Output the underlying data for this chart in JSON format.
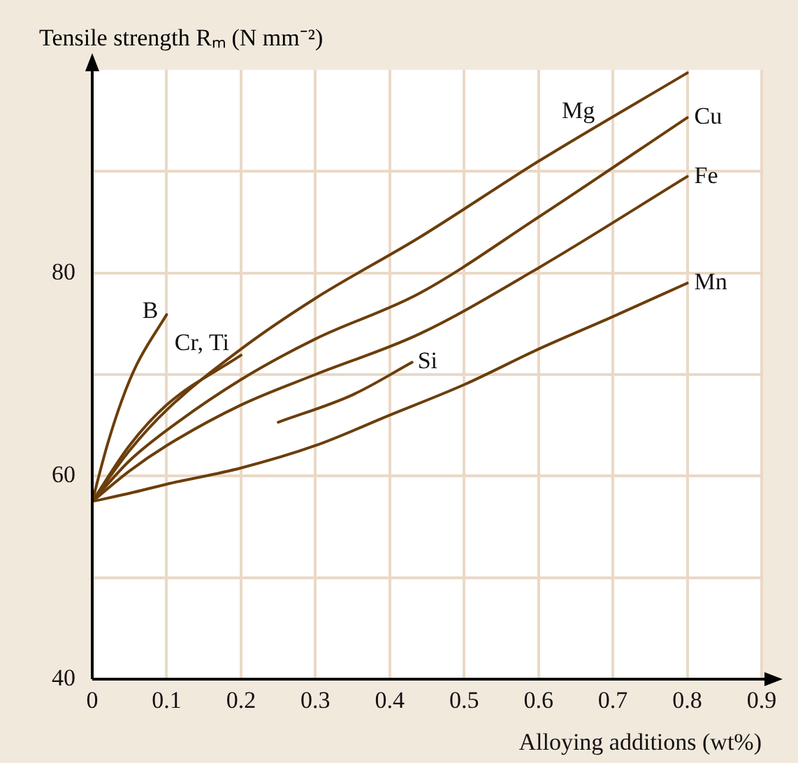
{
  "chart_data": {
    "type": "line",
    "ylabel": "Tensile strength Rₘ (N mm⁻²)",
    "xlabel": "Alloying additions (wt%)",
    "xlim": [
      0,
      0.9
    ],
    "xticks": [
      0,
      0.1,
      0.2,
      0.3,
      0.4,
      0.5,
      0.6,
      0.7,
      0.8,
      0.9
    ],
    "ylim": [
      40,
      100
    ],
    "yticks": [
      40,
      {
        "value": 50,
        "label": null
      },
      60,
      {
        "value": 70,
        "label": null
      },
      80,
      {
        "value": 90,
        "label": null
      }
    ],
    "grid": true,
    "legend": false,
    "marker": "none",
    "line_style": "solid",
    "series": [
      {
        "name": "B",
        "color": "#6b3e0a",
        "x": [
          0,
          0.02,
          0.04,
          0.06,
          0.1
        ],
        "values": [
          57.5,
          63,
          67.5,
          71,
          75.9
        ]
      },
      {
        "name": "Cr, Ti",
        "color": "#6b3e0a",
        "x": [
          0,
          0.05,
          0.1,
          0.2
        ],
        "values": [
          57.5,
          63,
          67,
          71.9
        ]
      },
      {
        "name": "Mg",
        "color": "#6b3e0a",
        "x": [
          0,
          0.05,
          0.1,
          0.2,
          0.3,
          0.44,
          0.6,
          0.8
        ],
        "values": [
          57.5,
          62.5,
          66.5,
          72.5,
          77.5,
          83.5,
          91,
          99.7
        ]
      },
      {
        "name": "Cu",
        "color": "#6b3e0a",
        "x": [
          0,
          0.05,
          0.1,
          0.2,
          0.3,
          0.44,
          0.6,
          0.8
        ],
        "values": [
          57.5,
          61.5,
          64.5,
          69.5,
          73.5,
          78,
          85.5,
          95.3
        ]
      },
      {
        "name": "Fe",
        "color": "#6b3e0a",
        "x": [
          0,
          0.05,
          0.1,
          0.2,
          0.3,
          0.44,
          0.6,
          0.8
        ],
        "values": [
          57.5,
          60.5,
          63,
          67,
          70,
          74,
          80.5,
          89.5
        ]
      },
      {
        "name": "Si",
        "color": "#6b3e0a",
        "x": [
          0.25,
          0.35,
          0.43
        ],
        "values": [
          65.3,
          68,
          71.2
        ]
      },
      {
        "name": "Mn",
        "color": "#6b3e0a",
        "x": [
          0,
          0.05,
          0.1,
          0.2,
          0.3,
          0.4,
          0.5,
          0.6,
          0.7,
          0.8
        ],
        "values": [
          57.5,
          58.3,
          59.2,
          60.8,
          63,
          66,
          69,
          72.5,
          75.7,
          79
        ]
      }
    ]
  }
}
